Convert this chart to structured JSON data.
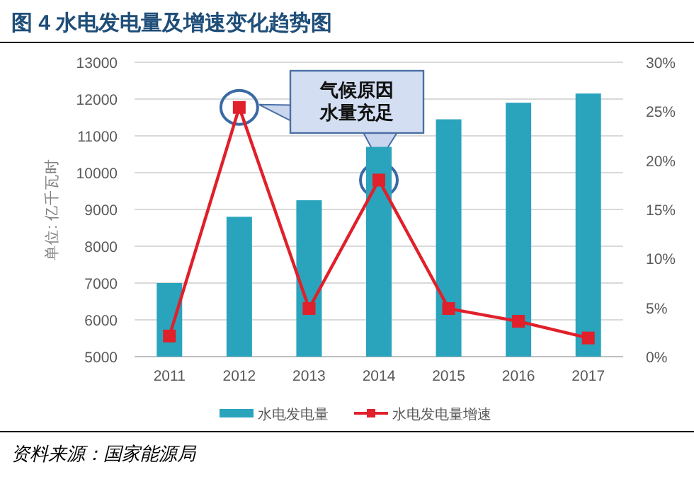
{
  "chart_data": {
    "type": "bar",
    "title": "图 4  水电发电量及增速变化趋势图",
    "ylabel": "单位: 亿千瓦时",
    "categories": [
      "2011",
      "2012",
      "2013",
      "2014",
      "2015",
      "2016",
      "2017"
    ],
    "series": [
      {
        "name": "水电发电量",
        "color": "#2aa3bd",
        "values": [
          7000,
          8800,
          9250,
          10700,
          11450,
          11900,
          12150
        ]
      },
      {
        "name": "水电发电量增速",
        "type": "line",
        "axis": "y2",
        "color": "#e0202a",
        "values": [
          2.1,
          25.4,
          4.9,
          18.0,
          4.9,
          3.6,
          1.9
        ]
      }
    ],
    "ylim": [
      5000,
      13000
    ],
    "yticks": [
      5000,
      6000,
      7000,
      8000,
      9000,
      10000,
      11000,
      12000,
      13000
    ],
    "y2lim": [
      0,
      30
    ],
    "y2ticks": [
      {
        "value": 0,
        "label": "0%"
      },
      {
        "value": 5,
        "label": "5%"
      },
      {
        "value": 10,
        "label": "10%"
      },
      {
        "value": 15,
        "label": "15%"
      },
      {
        "value": 20,
        "label": "20%"
      },
      {
        "value": 25,
        "label": "25%"
      },
      {
        "value": 30,
        "label": "30%"
      }
    ],
    "grid": "y",
    "legend": "bottom",
    "marker": "square",
    "line_style": "solid",
    "annotations": [
      "气候原因水量充足",
      "资料来源：国家能源局"
    ]
  }
}
